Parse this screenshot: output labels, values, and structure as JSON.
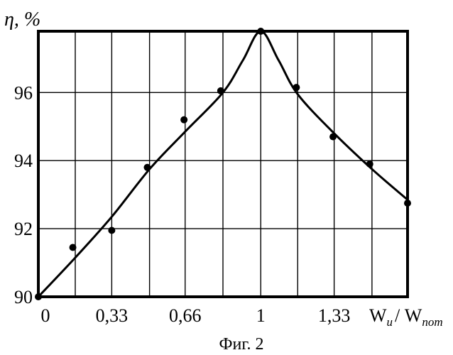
{
  "chart_data": {
    "type": "scatter",
    "ylabel": "η, %",
    "xlabel_main": "W",
    "xlabel_sub1": "и",
    "xlabel_sep": "/ W",
    "xlabel_sub2": "пот",
    "caption": "Фиг. 2",
    "xlim": [
      0,
      1.66
    ],
    "ylim": [
      90,
      97.8
    ],
    "grid": true,
    "x_tick_labels": [
      {
        "value": 0,
        "label": "0"
      },
      {
        "value": 0.33,
        "label": "0,33"
      },
      {
        "value": 0.66,
        "label": "0,66"
      },
      {
        "value": 1,
        "label": "1"
      },
      {
        "value": 1.33,
        "label": "1,33"
      }
    ],
    "y_tick_labels": [
      {
        "value": 90,
        "label": "90"
      },
      {
        "value": 92,
        "label": "92"
      },
      {
        "value": 94,
        "label": "94"
      },
      {
        "value": 96,
        "label": "96"
      }
    ],
    "x_grid": [
      0.166,
      0.33,
      0.5,
      0.66,
      0.83,
      1.0,
      1.166,
      1.33,
      1.5
    ],
    "y_grid": [
      92,
      94,
      96
    ],
    "series": [
      {
        "points": [
          {
            "x": 0,
            "y": 90.0
          },
          {
            "x": 0.155,
            "y": 91.45
          },
          {
            "x": 0.33,
            "y": 91.95
          },
          {
            "x": 0.49,
            "y": 93.8
          },
          {
            "x": 0.655,
            "y": 95.2
          },
          {
            "x": 0.82,
            "y": 96.05
          },
          {
            "x": 1.0,
            "y": 97.8
          },
          {
            "x": 1.16,
            "y": 96.15
          },
          {
            "x": 1.325,
            "y": 94.7
          },
          {
            "x": 1.49,
            "y": 93.9
          },
          {
            "x": 1.66,
            "y": 92.75
          }
        ],
        "fit_curve": [
          {
            "x": 0,
            "y": 90.0
          },
          {
            "x": 0.166,
            "y": 91.15
          },
          {
            "x": 0.33,
            "y": 92.35
          },
          {
            "x": 0.5,
            "y": 93.75
          },
          {
            "x": 0.66,
            "y": 94.85
          },
          {
            "x": 0.83,
            "y": 96.0
          },
          {
            "x": 0.92,
            "y": 96.95
          },
          {
            "x": 1.0,
            "y": 97.8
          },
          {
            "x": 1.08,
            "y": 96.95
          },
          {
            "x": 1.166,
            "y": 95.95
          },
          {
            "x": 1.33,
            "y": 94.8
          },
          {
            "x": 1.5,
            "y": 93.75
          },
          {
            "x": 1.66,
            "y": 92.85
          }
        ]
      }
    ]
  }
}
